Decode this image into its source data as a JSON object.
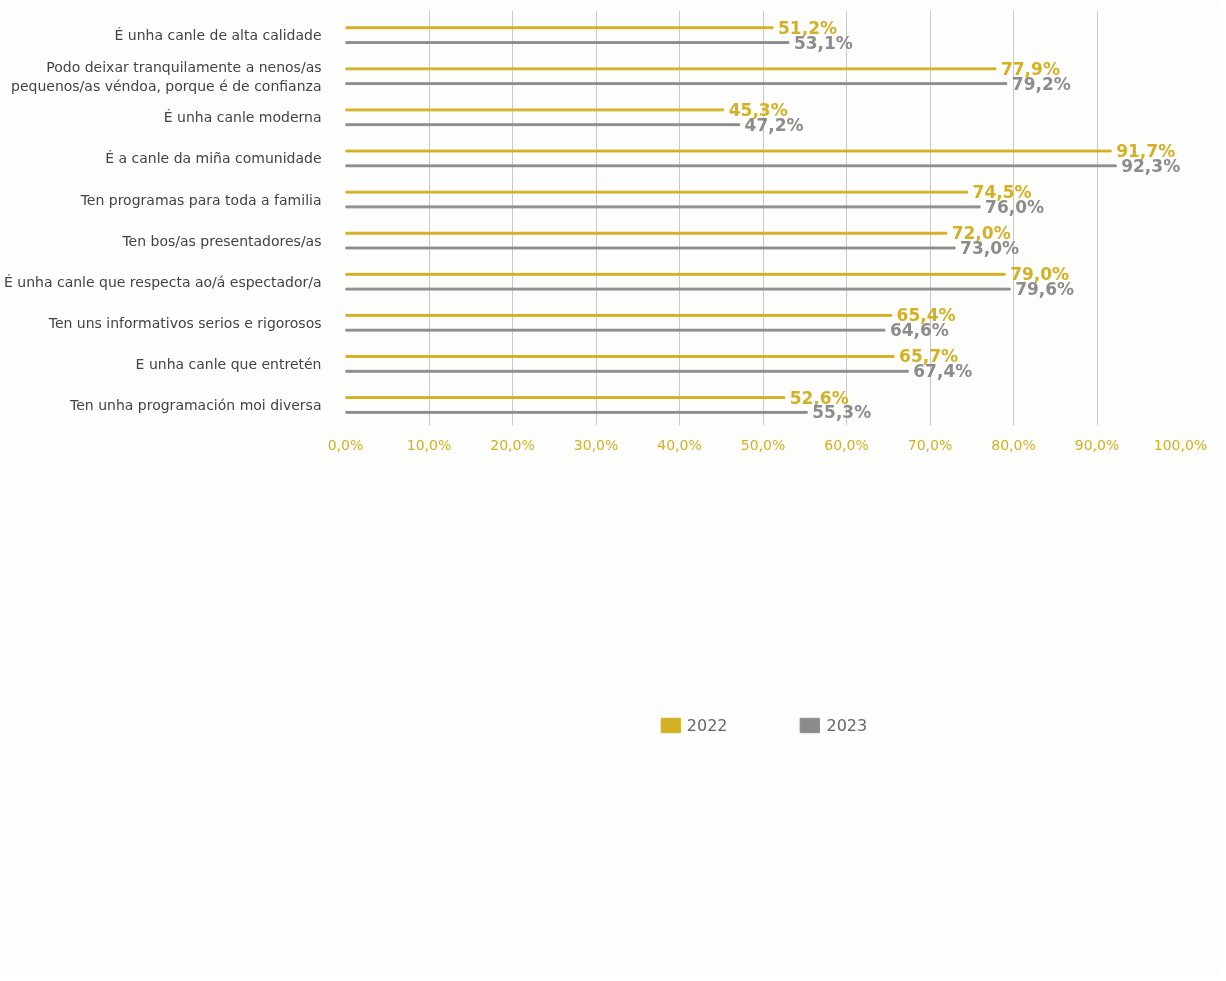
{
  "chart_data": {
    "type": "bar",
    "orientation": "horizontal",
    "categories": [
      "É unha canle de alta calidade",
      "Podo deixar tranquilamente a nenos/as\npequenos/as véndoa, porque é de confianza",
      "É unha canle moderna",
      "É a canle da miña comunidade",
      "Ten programas para toda a familia",
      "Ten bos/as presentadores/as",
      "É unha canle que respecta ao/á espectador/a",
      "Ten uns informativos serios e rigorosos",
      "E unha canle que entretén",
      "Ten unha programación moi diversa"
    ],
    "series": [
      {
        "name": "2022",
        "color": "#d4b024",
        "values": [
          51.2,
          77.9,
          45.3,
          91.7,
          74.5,
          72.0,
          79.0,
          65.4,
          65.7,
          52.6
        ],
        "value_labels": [
          "51,2%",
          "77,9%",
          "45,3%",
          "91,7%",
          "74,5%",
          "72,0%",
          "79,0%",
          "65,4%",
          "65,7%",
          "52,6%"
        ]
      },
      {
        "name": "2023",
        "color": "#8c8c8c",
        "values": [
          53.1,
          79.2,
          47.2,
          92.3,
          76.0,
          73.0,
          79.6,
          64.6,
          67.4,
          55.3
        ],
        "value_labels": [
          "53,1%",
          "79,2%",
          "47,2%",
          "92,3%",
          "76,0%",
          "73,0%",
          "79,6%",
          "64,6%",
          "67,4%",
          "55,3%"
        ]
      }
    ],
    "xlim": [
      0,
      100
    ],
    "xticks": [
      {
        "value": 0,
        "label": "0,0%"
      },
      {
        "value": 10,
        "label": "10,0%"
      },
      {
        "value": 20,
        "label": "20,0%"
      },
      {
        "value": 30,
        "label": "30,0%"
      },
      {
        "value": 40,
        "label": "40,0%"
      },
      {
        "value": 50,
        "label": "50,0%"
      },
      {
        "value": 60,
        "label": "60,0%"
      },
      {
        "value": 70,
        "label": "70,0%"
      },
      {
        "value": 80,
        "label": "80,0%"
      },
      {
        "value": 90,
        "label": "90,0%"
      },
      {
        "value": 100,
        "label": "100,0%"
      }
    ],
    "grid": "x",
    "legend": "bottom"
  }
}
